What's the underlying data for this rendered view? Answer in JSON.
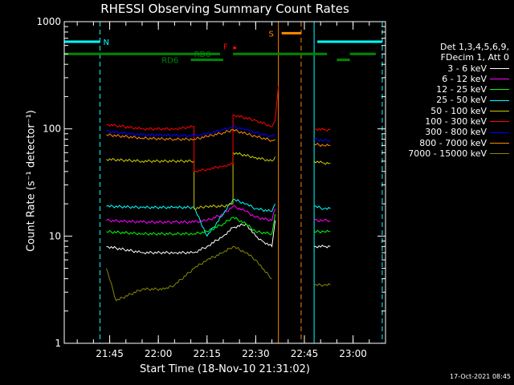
{
  "chart_data": {
    "type": "line",
    "title": "RHESSI Observing Summary Count Rates",
    "xlabel": "Start Time (18-Nov-10 21:31:02)",
    "ylabel": "Count Rate (s⁻¹ detector⁻¹)",
    "yscale": "log",
    "ylim": [
      1,
      1000
    ],
    "xlim": [
      "21:31",
      "23:10"
    ],
    "x_ticks": [
      "21:45",
      "22:00",
      "22:15",
      "22:30",
      "22:45",
      "23:00"
    ],
    "y_ticks": [
      "1",
      "10",
      "100",
      "1000"
    ],
    "legend_header": [
      "Det 1,3,4,5,6,9,",
      "FDecim 1, Att 0"
    ],
    "legend_placement": "right",
    "timestamp": "17-Oct-2021 08:45",
    "series": [
      {
        "name": "3 - 6 keV",
        "color": "#ffffff",
        "segments": [
          {
            "x": [
              "21:44",
              "21:55",
              "22:05",
              "22:11",
              "22:15",
              "22:20",
              "22:23",
              "22:27",
              "22:30",
              "22:32",
              "22:35",
              "22:36"
            ],
            "y": [
              8,
              7,
              7,
              7,
              8,
              10,
              12,
              13,
              10,
              9,
              8,
              14
            ]
          },
          {
            "x": [
              "22:48",
              "22:51",
              "22:53"
            ],
            "y": [
              8,
              8,
              8
            ]
          }
        ]
      },
      {
        "name": "6 - 12 keV",
        "color": "#ff00ff",
        "segments": [
          {
            "x": [
              "21:44",
              "21:55",
              "22:05",
              "22:11",
              "22:15",
              "22:20",
              "22:23",
              "22:27",
              "22:30",
              "22:35",
              "22:36"
            ],
            "y": [
              14,
              13.5,
              13.5,
              13.5,
              14,
              16,
              19,
              17,
              15,
              14,
              18
            ]
          },
          {
            "x": [
              "22:48",
              "22:51",
              "22:53"
            ],
            "y": [
              14,
              14,
              14
            ]
          }
        ]
      },
      {
        "name": "12 - 25 keV",
        "color": "#00ff00",
        "segments": [
          {
            "x": [
              "21:44",
              "21:55",
              "22:05",
              "22:11",
              "22:15",
              "22:20",
              "22:23",
              "22:27",
              "22:30",
              "22:35",
              "22:36"
            ],
            "y": [
              11,
              10.5,
              10.5,
              10.5,
              11,
              13,
              15,
              13,
              11,
              10.5,
              16
            ]
          },
          {
            "x": [
              "22:48",
              "22:51",
              "22:53"
            ],
            "y": [
              11,
              11,
              11
            ]
          }
        ]
      },
      {
        "name": "25 - 50 keV",
        "color": "#00ffff",
        "segments": [
          {
            "x": [
              "21:44",
              "21:55",
              "22:05",
              "22:11",
              "22:15",
              "22:20",
              "22:23",
              "22:27",
              "22:30",
              "22:35",
              "22:36"
            ],
            "y": [
              19,
              18.5,
              18.5,
              18.5,
              10,
              16,
              22,
              20,
              18,
              17,
              20
            ]
          },
          {
            "x": [
              "22:48",
              "22:51",
              "22:53"
            ],
            "y": [
              19,
              18,
              18
            ]
          }
        ]
      },
      {
        "name": "50 - 100 keV",
        "color": "#cccc00",
        "segments": [
          {
            "x": [
              "21:44",
              "21:55",
              "22:05",
              "22:11",
              "22:11",
              "22:15",
              "22:20",
              "22:23",
              "22:23",
              "22:30",
              "22:35",
              "22:36"
            ],
            "y": [
              52,
              50,
              50,
              50,
              18,
              19,
              19,
              20,
              60,
              54,
              50,
              55
            ]
          },
          {
            "x": [
              "22:48",
              "22:51",
              "22:53"
            ],
            "y": [
              50,
              48,
              48
            ]
          }
        ]
      },
      {
        "name": "100 - 300 keV",
        "color": "#ff0000",
        "segments": [
          {
            "x": [
              "21:44",
              "21:55",
              "22:05",
              "22:11",
              "22:11",
              "22:15",
              "22:20",
              "22:23",
              "22:23",
              "22:30",
              "22:35",
              "22:36",
              "22:37"
            ],
            "y": [
              110,
              100,
              100,
              105,
              40,
              42,
              45,
              47,
              135,
              120,
              105,
              120,
              250
            ]
          },
          {
            "x": [
              "22:48",
              "22:51",
              "22:53"
            ],
            "y": [
              100,
              98,
              98
            ]
          }
        ]
      },
      {
        "name": "300 - 800 keV",
        "color": "#0000ff",
        "segments": [
          {
            "x": [
              "21:44",
              "21:55",
              "22:05",
              "22:11",
              "22:15",
              "22:20",
              "22:23",
              "22:27",
              "22:30",
              "22:35",
              "22:36"
            ],
            "y": [
              95,
              88,
              87,
              86,
              90,
              98,
              105,
              98,
              92,
              85,
              88
            ]
          },
          {
            "x": [
              "22:48",
              "22:51",
              "22:53"
            ],
            "y": [
              80,
              78,
              78
            ]
          }
        ]
      },
      {
        "name": "800 - 7000 keV",
        "color": "#ff8800",
        "segments": [
          {
            "x": [
              "21:44",
              "21:55",
              "22:05",
              "22:11",
              "22:15",
              "22:20",
              "22:23",
              "22:27",
              "22:30",
              "22:35",
              "22:36"
            ],
            "y": [
              88,
              82,
              80,
              80,
              85,
              92,
              98,
              90,
              85,
              78,
              80
            ]
          },
          {
            "x": [
              "22:48",
              "22:51",
              "22:53"
            ],
            "y": [
              72,
              70,
              70
            ]
          }
        ]
      },
      {
        "name": "7000 - 15000 keV",
        "color": "#888800",
        "segments": [
          {
            "x": [
              "21:44",
              "21:47",
              "21:55",
              "22:02",
              "22:05",
              "22:11",
              "22:15",
              "22:20",
              "22:23",
              "22:27",
              "22:30",
              "22:32",
              "22:35"
            ],
            "y": [
              5,
              2.5,
              3.2,
              3.2,
              3.5,
              5,
              6,
              7,
              8,
              7,
              6,
              5,
              4
            ]
          },
          {
            "x": [
              "22:48",
              "22:51",
              "22:53"
            ],
            "y": [
              3.5,
              3.5,
              3.5
            ]
          }
        ]
      }
    ],
    "annotations": {
      "night_label": "N",
      "saa_label": "S",
      "flare_label": "F",
      "rd0_label": "RD0",
      "rd6_label": "RD6"
    },
    "bars": [
      {
        "label_key": "night",
        "color": "#00ffff",
        "level": 650,
        "ranges": [
          [
            "21:31",
            "21:42"
          ],
          [
            "22:49",
            "23:09"
          ]
        ]
      },
      {
        "label_key": "saa",
        "color": "#ff8800",
        "level": 780,
        "ranges": [
          [
            "22:38",
            "22:44"
          ]
        ]
      },
      {
        "label_key": "flare",
        "color": "#ff0000",
        "level": 570,
        "ranges": [
          [
            "22:23",
            "22:24"
          ]
        ]
      },
      {
        "label_key": "rd0",
        "color": "#008800",
        "level": 500,
        "ranges": [
          [
            "21:31",
            "22:19"
          ],
          [
            "22:23",
            "22:52"
          ],
          [
            "22:59",
            "23:07"
          ]
        ]
      },
      {
        "label_key": "rd6",
        "color": "#008800",
        "level": 440,
        "ranges": [
          [
            "22:10",
            "22:20"
          ],
          [
            "22:55",
            "22:59"
          ]
        ]
      }
    ],
    "vlines_solid": [
      {
        "x": "21:31",
        "color": "#00ffff"
      },
      {
        "x": "22:48",
        "color": "#00ffff"
      },
      {
        "x": "22:37",
        "color": "#ff8800"
      }
    ],
    "vlines_dashed": [
      {
        "x": "21:42",
        "color": "#00ffff"
      },
      {
        "x": "23:09",
        "color": "#00ffff"
      },
      {
        "x": "22:44",
        "color": "#ff8800"
      }
    ]
  }
}
